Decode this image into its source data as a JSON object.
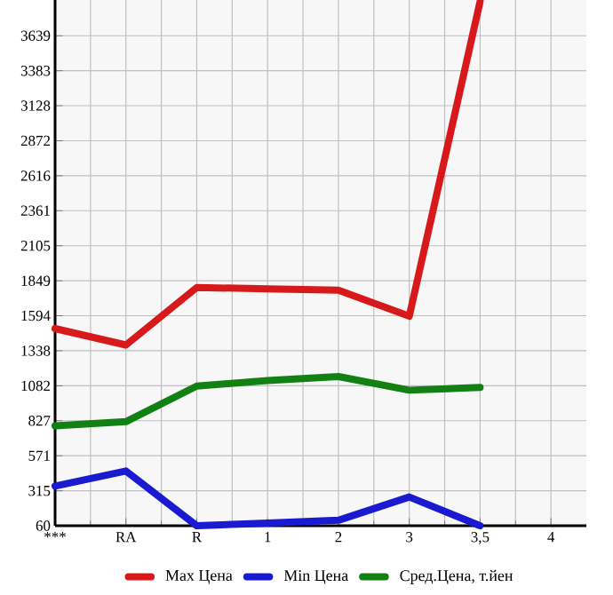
{
  "chart_data": {
    "type": "line",
    "categories": [
      "***",
      "RA",
      "R",
      "1",
      "2",
      "3",
      "3,5",
      "4"
    ],
    "series": [
      {
        "name": "Max Цена",
        "color": "#d7191c",
        "values": [
          1500,
          1380,
          1800,
          1790,
          1780,
          1590,
          3890,
          null
        ]
      },
      {
        "name": "Min Цена",
        "color": "#1a1ad0",
        "values": [
          350,
          460,
          60,
          80,
          100,
          270,
          60,
          null
        ]
      },
      {
        "name": "Сред.Цена, т.йен",
        "color": "#138013",
        "values": [
          790,
          820,
          1080,
          1120,
          1150,
          1050,
          1070,
          null
        ]
      }
    ],
    "ylim": [
      60,
      3900
    ],
    "yticks": [
      60,
      315,
      571,
      827,
      1082,
      1338,
      1594,
      1849,
      2105,
      2361,
      2616,
      2872,
      3128,
      3383,
      3639
    ],
    "grid": true,
    "legend": "bottom",
    "marker": "none",
    "line_style": "solid"
  }
}
